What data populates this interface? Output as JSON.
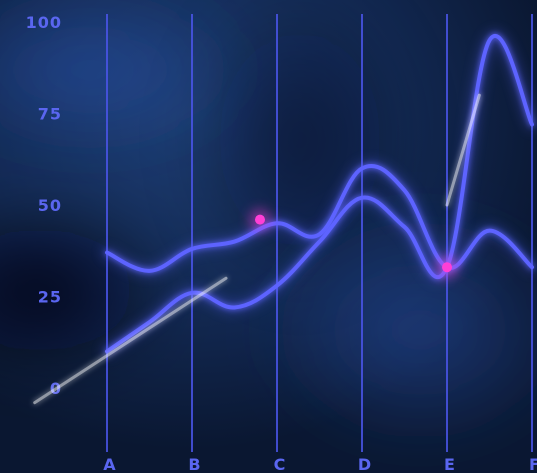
{
  "colors": {
    "background": "#0b1a35",
    "axis_text": "#5a66f0",
    "gridline": "#4a55e8",
    "series_1": "#5d63ff",
    "series_2": "#5d63ff",
    "highlight_glow": "#ffffff",
    "marker": "#ff3fd6"
  },
  "chart_data": {
    "type": "line",
    "title": "",
    "xlabel": "",
    "ylabel": "",
    "categories": [
      "A",
      "B",
      "C",
      "D",
      "E",
      "F"
    ],
    "ylim": [
      0,
      100
    ],
    "yticks": [
      "0",
      "25",
      "50",
      "75",
      "100"
    ],
    "grid": true,
    "grid_direction": "vertical",
    "legend": "none",
    "series": [
      {
        "x": [
          0,
          0.5,
          1,
          1.5,
          2,
          2.5,
          3,
          3.5,
          4,
          4.5,
          5
        ],
        "y": [
          37,
          32,
          38,
          40,
          45,
          42,
          60,
          54,
          33,
          43,
          33
        ]
      },
      {
        "x": [
          0,
          0.5,
          1,
          1.5,
          2,
          2.5,
          3,
          3.5,
          4,
          4.5,
          5
        ],
        "y": [
          10,
          18,
          26,
          22,
          28,
          40,
          52,
          44,
          33,
          95,
          72
        ]
      }
    ],
    "markers": [
      {
        "x": 1.8,
        "y": 46
      },
      {
        "x": 4.0,
        "y": 33
      }
    ]
  }
}
